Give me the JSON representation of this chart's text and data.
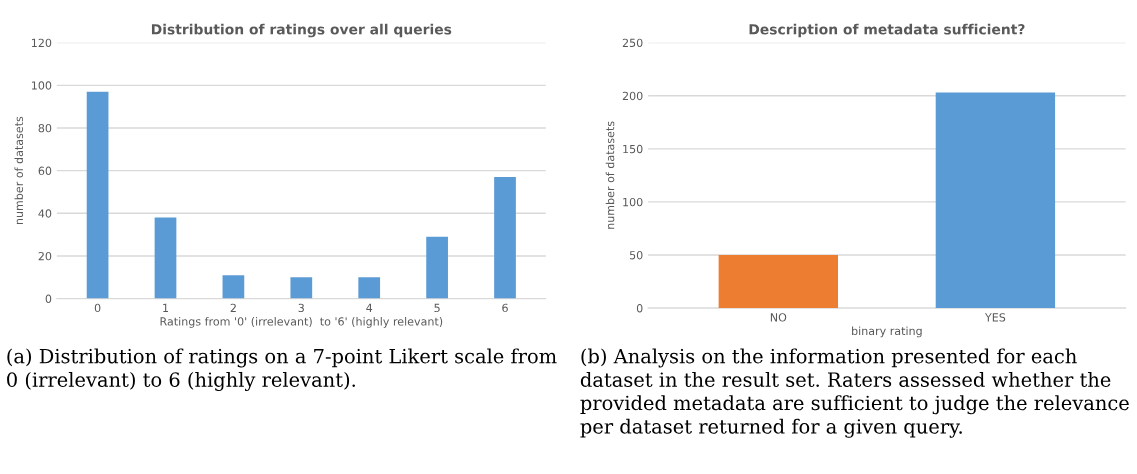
{
  "chart_data": [
    {
      "type": "bar",
      "title": "Distribution of ratings over all queries",
      "xlabel": "Ratings from '0' (irrelevant)  to '6' (highly relevant)",
      "ylabel": "number of datasets",
      "categories": [
        "0",
        "1",
        "2",
        "3",
        "4",
        "5",
        "6"
      ],
      "values": [
        97,
        38,
        11,
        10,
        10,
        29,
        57
      ],
      "color": "#5b9bd5",
      "ylim": [
        0,
        120
      ],
      "yticks": [
        0,
        20,
        40,
        60,
        80,
        100,
        120
      ],
      "grid": "y",
      "annotations": [
        "(a) Distribution of ratings on a 7-point Likert scale from 0 (irrelevant) to 6 (highly relevant)."
      ]
    },
    {
      "type": "bar",
      "title": "Description of metadata sufficient?",
      "xlabel": "binary rating",
      "ylabel": "number of datasets",
      "categories": [
        "NO",
        "YES"
      ],
      "values": [
        50,
        203
      ],
      "colors": [
        "#ed7d31",
        "#5b9bd5"
      ],
      "ylim": [
        0,
        250
      ],
      "yticks": [
        0,
        50,
        100,
        150,
        200,
        250
      ],
      "grid": "y",
      "annotations": [
        "(b) Analysis on the information presented for each dataset in the result set. Raters assessed whether the provided metadata are sufficient to judge the relevance per dataset returned for a given query."
      ]
    }
  ]
}
